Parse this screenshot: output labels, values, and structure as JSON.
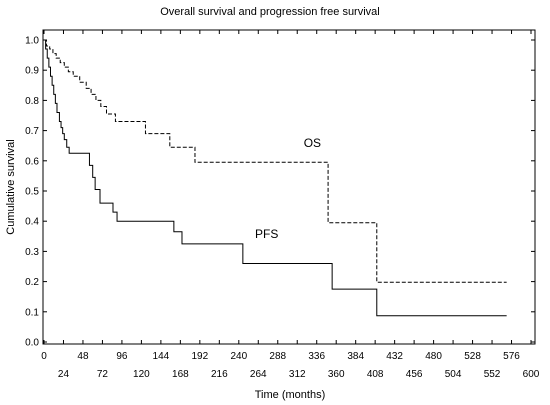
{
  "chart_data": {
    "type": "line",
    "title": "Overall survival and progression free survival",
    "xlabel": "Time (months)",
    "ylabel": "Cumulative survival",
    "xlim": [
      0,
      600
    ],
    "ylim": [
      0,
      1.05
    ],
    "x_ticks_top": [
      0,
      48,
      96,
      144,
      192,
      240,
      288,
      336,
      384,
      432,
      480,
      528,
      576
    ],
    "x_ticks_bottom": [
      24,
      72,
      120,
      168,
      216,
      264,
      312,
      360,
      408,
      456,
      504,
      552,
      600
    ],
    "y_ticks": [
      "0.0",
      "0.1",
      "0.2",
      "0.3",
      "0.4",
      "0.5",
      "0.6",
      "0.7",
      "0.8",
      "0.9",
      "1.0"
    ],
    "grid": false,
    "series": [
      {
        "name": "OS",
        "style": "dashed",
        "color": "#000000",
        "label_at": [
          320,
          0.645
        ],
        "steps": [
          [
            0,
            1.0
          ],
          [
            3,
            0.98
          ],
          [
            7,
            0.97
          ],
          [
            11,
            0.955
          ],
          [
            15,
            0.94
          ],
          [
            20,
            0.925
          ],
          [
            25,
            0.91
          ],
          [
            30,
            0.895
          ],
          [
            36,
            0.88
          ],
          [
            44,
            0.86
          ],
          [
            52,
            0.84
          ],
          [
            58,
            0.82
          ],
          [
            64,
            0.8
          ],
          [
            70,
            0.78
          ],
          [
            77,
            0.755
          ],
          [
            88,
            0.73
          ],
          [
            125,
            0.69
          ],
          [
            155,
            0.645
          ],
          [
            186,
            0.595
          ],
          [
            350,
            0.395
          ],
          [
            410,
            0.198
          ],
          [
            570,
            0.198
          ]
        ]
      },
      {
        "name": "PFS",
        "style": "solid",
        "color": "#000000",
        "label_at": [
          260,
          0.345
        ],
        "steps": [
          [
            0,
            1.0
          ],
          [
            2,
            0.97
          ],
          [
            4,
            0.94
          ],
          [
            6,
            0.91
          ],
          [
            8,
            0.88
          ],
          [
            10,
            0.85
          ],
          [
            12,
            0.82
          ],
          [
            14,
            0.79
          ],
          [
            16,
            0.76
          ],
          [
            19,
            0.73
          ],
          [
            21,
            0.71
          ],
          [
            23,
            0.69
          ],
          [
            25,
            0.67
          ],
          [
            28,
            0.645
          ],
          [
            31,
            0.625
          ],
          [
            56,
            0.585
          ],
          [
            60,
            0.545
          ],
          [
            63,
            0.505
          ],
          [
            69,
            0.46
          ],
          [
            85,
            0.43
          ],
          [
            90,
            0.4
          ],
          [
            160,
            0.365
          ],
          [
            170,
            0.325
          ],
          [
            245,
            0.26
          ],
          [
            355,
            0.175
          ],
          [
            410,
            0.087
          ],
          [
            570,
            0.087
          ]
        ]
      }
    ]
  }
}
